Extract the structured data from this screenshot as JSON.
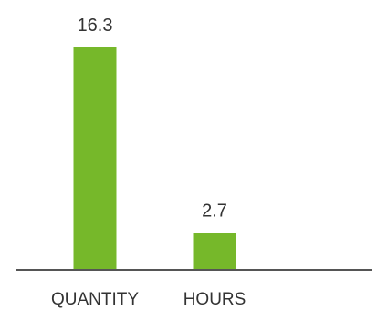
{
  "chart_data": {
    "type": "bar",
    "title": "",
    "xlabel": "",
    "ylabel": "",
    "categories": [
      "QUANTITY",
      "HOURS"
    ],
    "values": [
      16.3,
      2.7
    ],
    "value_labels": [
      "16.3",
      "2.7"
    ],
    "ylim": [
      0,
      16.3
    ],
    "grid": false,
    "legend": "none",
    "colors": {
      "bar": "#76b82a",
      "axis": "#555555",
      "text": "#333333"
    }
  }
}
